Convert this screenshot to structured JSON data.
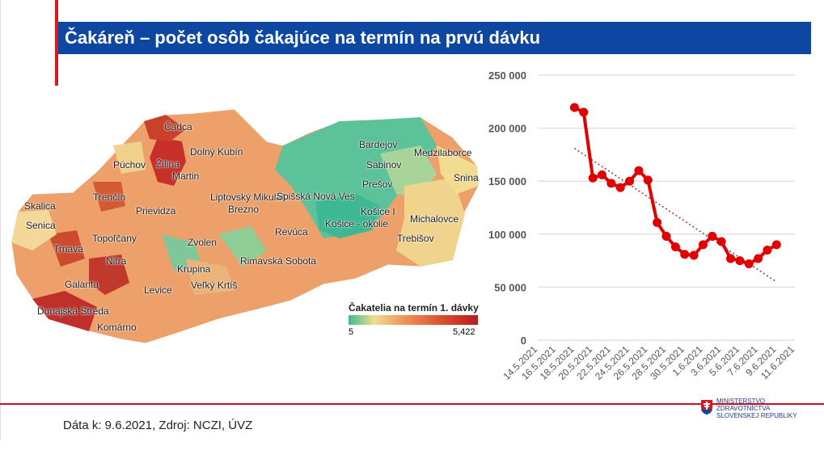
{
  "title": "Čakáreň – počet osôb čakajúce na termín na prvú dávku",
  "footer": "Dáta k: 9.6.2021, Zdroj: NCZI, ÚVZ",
  "ministry": {
    "line1": "MINISTERSTVO",
    "line2": "ZDRAVOTNÍCTVA",
    "line3": "SLOVENSKEJ REPUBLIKY"
  },
  "map": {
    "legend_title": "Čakatelia na termín 1. dávky",
    "legend_min": "5",
    "legend_max": "5,422",
    "districts": [
      "Čadca",
      "Dolný Kubín",
      "Žilina",
      "Púchov",
      "Martin",
      "Liptovský Mikuláš",
      "Bardejov",
      "Medzilaborce",
      "Sabinov",
      "Prešov",
      "Snina",
      "Trenčín",
      "Spišská Nová Ves",
      "Skalica",
      "Prievidza",
      "Brezno",
      "Košice I",
      "Košice - okolie",
      "Senica",
      "Topoľčany",
      "Michalovce",
      "Zvolen",
      "Revúca",
      "Trebišov",
      "Trnava",
      "Rimavská Sobota",
      "Nitra",
      "Krupina",
      "Galanta",
      "Levice",
      "Veľký Krtíš",
      "Dunajská Streda",
      "Komárno"
    ]
  },
  "colors": {
    "title_bar": "#0d47a1",
    "accent_red": "#d71920",
    "line": "#e00000"
  },
  "chart_data": {
    "type": "line",
    "title": "",
    "xlabel": "",
    "ylabel": "",
    "x_ticks": [
      "14.5.2021",
      "16.5.2021",
      "18.5.2021",
      "20.5.2021",
      "22.5.2021",
      "24.5.2021",
      "26.5.2021",
      "28.5.2021",
      "30.5.2021",
      "1.6.2021",
      "3.6.2021",
      "5.6.2021",
      "7.6.2021",
      "9.6.2021",
      "11.6.2021"
    ],
    "y_ticks": [
      "0",
      "50 000",
      "100 000",
      "150 000",
      "200 000",
      "250 000"
    ],
    "ylim": [
      0,
      250000
    ],
    "xlim": [
      "14.5.2021",
      "11.6.2021"
    ],
    "grid": true,
    "series": [
      {
        "color": "#e00000",
        "marker": "circle",
        "x": [
          "18.5.2021",
          "19.5.2021",
          "20.5.2021",
          "21.5.2021",
          "22.5.2021",
          "23.5.2021",
          "24.5.2021",
          "25.5.2021",
          "26.5.2021",
          "27.5.2021",
          "28.5.2021",
          "29.5.2021",
          "30.5.2021",
          "31.5.2021",
          "1.6.2021",
          "2.6.2021",
          "3.6.2021",
          "4.6.2021",
          "5.6.2021",
          "6.6.2021",
          "7.6.2021",
          "8.6.2021",
          "9.6.2021"
        ],
        "values": [
          219500,
          215000,
          153000,
          156000,
          148000,
          144000,
          150000,
          160000,
          151000,
          111000,
          98000,
          88000,
          81000,
          80000,
          90000,
          98000,
          93000,
          77000,
          75000,
          72000,
          77000,
          85000,
          90000
        ]
      }
    ],
    "trendline": {
      "style": "dotted",
      "color": "#a03030",
      "x": [
        "18.5.2021",
        "9.6.2021"
      ],
      "values": [
        181000,
        55000
      ]
    }
  }
}
